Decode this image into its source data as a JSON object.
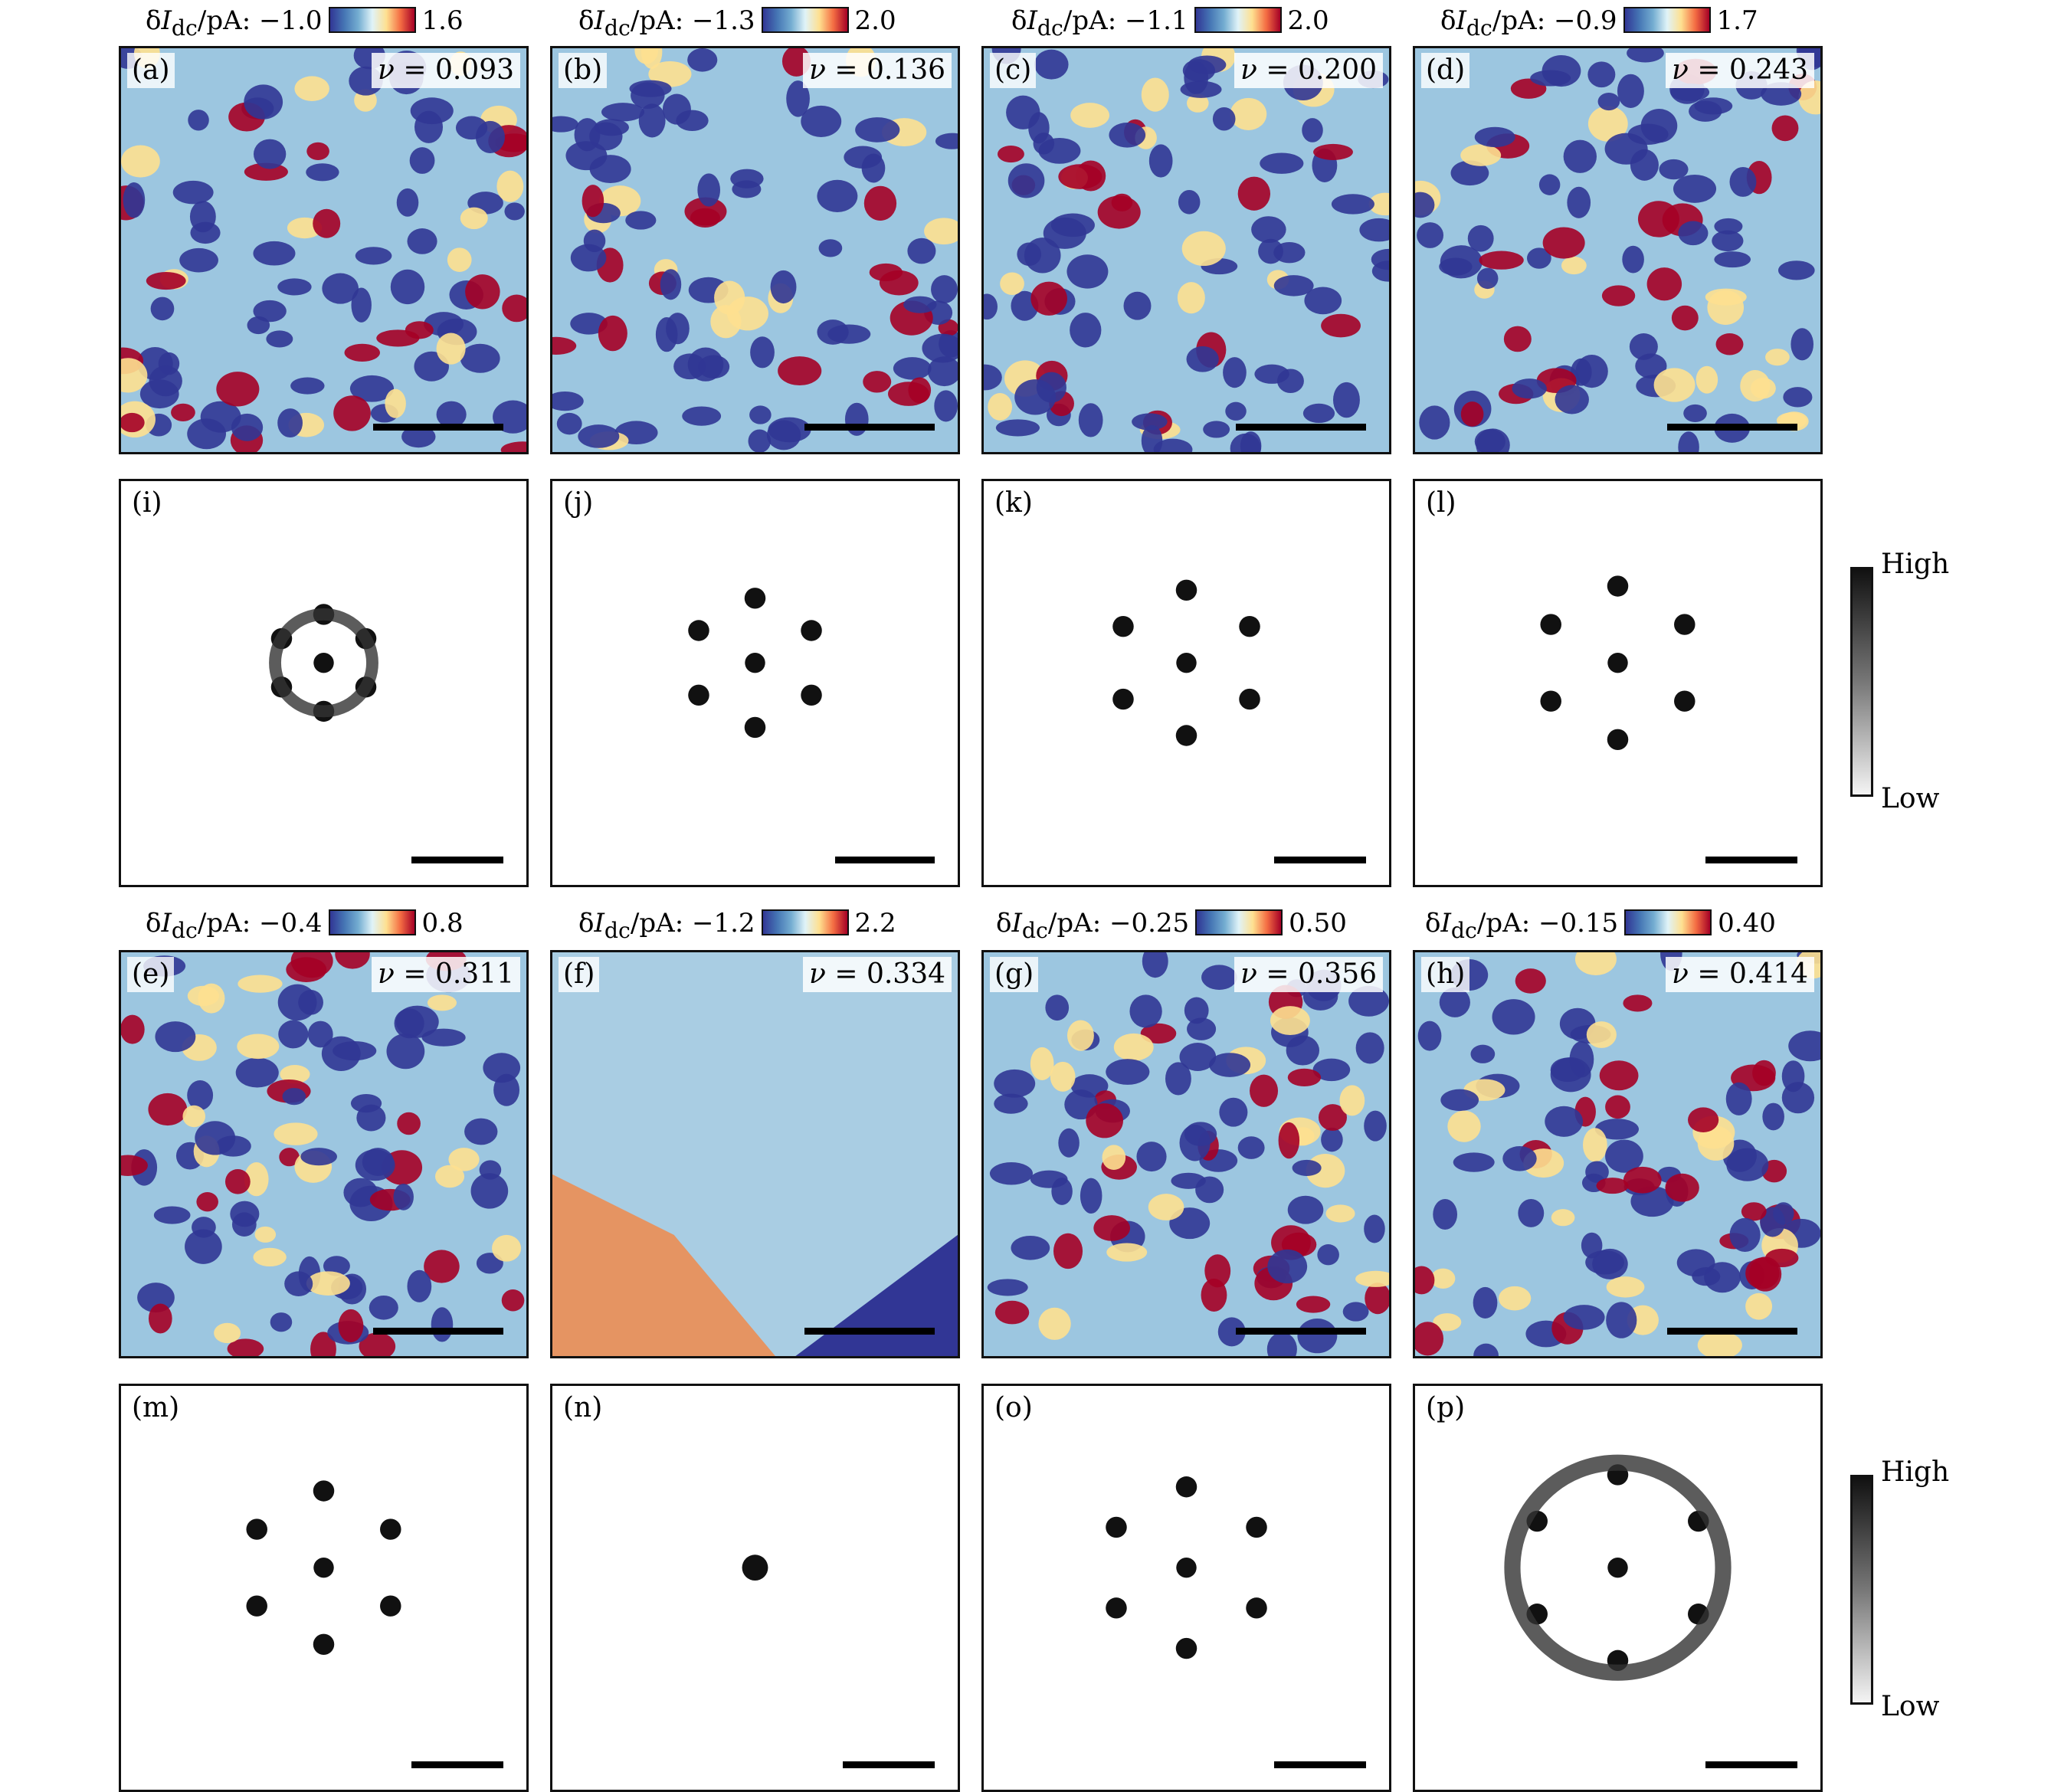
{
  "row_titles": [
    {
      "prefix": "δ",
      "var": "I",
      "sub": "dc",
      "unit": "/pA: ",
      "min": "−1.0",
      "max": "1.6"
    },
    {
      "prefix": "δ",
      "var": "I",
      "sub": "dc",
      "unit": "/pA: ",
      "min": "−1.3",
      "max": "2.0"
    },
    {
      "prefix": "δ",
      "var": "I",
      "sub": "dc",
      "unit": "/pA: ",
      "min": "−1.1",
      "max": "2.0"
    },
    {
      "prefix": "δ",
      "var": "I",
      "sub": "dc",
      "unit": "/pA: ",
      "min": "−0.9",
      "max": "1.7"
    },
    {
      "prefix": "δ",
      "var": "I",
      "sub": "dc",
      "unit": "/pA: ",
      "min": "−0.4",
      "max": "0.8"
    },
    {
      "prefix": "δ",
      "var": "I",
      "sub": "dc",
      "unit": "/pA: ",
      "min": "−1.2",
      "max": "2.2"
    },
    {
      "prefix": "δ",
      "var": "I",
      "sub": "dc",
      "unit": "/pA: ",
      "min": "−0.25",
      "max": "0.50"
    },
    {
      "prefix": "δ",
      "var": "I",
      "sub": "dc",
      "unit": "/pA: ",
      "min": "−0.15",
      "max": "0.40"
    }
  ],
  "map_panels": [
    {
      "label": "(a)",
      "nu": "0.093"
    },
    {
      "label": "(b)",
      "nu": "0.136"
    },
    {
      "label": "(c)",
      "nu": "0.200"
    },
    {
      "label": "(d)",
      "nu": "0.243"
    },
    {
      "label": "(e)",
      "nu": "0.311"
    },
    {
      "label": "(f)",
      "nu": "0.334"
    },
    {
      "label": "(g)",
      "nu": "0.356"
    },
    {
      "label": "(h)",
      "nu": "0.414"
    }
  ],
  "fft_panels": [
    {
      "label": "(i)"
    },
    {
      "label": "(j)"
    },
    {
      "label": "(k)"
    },
    {
      "label": "(l)"
    },
    {
      "label": "(m)"
    },
    {
      "label": "(n)"
    },
    {
      "label": "(o)"
    },
    {
      "label": "(p)"
    }
  ],
  "nu_symbol": "ν",
  "nu_eq": " = ",
  "gray_colorbar": {
    "high": "High",
    "low": "Low"
  },
  "colors": {
    "map_low": "#313695",
    "map_mid": "#e0f3f8",
    "map_high": "#a50026",
    "fft_peak": "#111111"
  }
}
